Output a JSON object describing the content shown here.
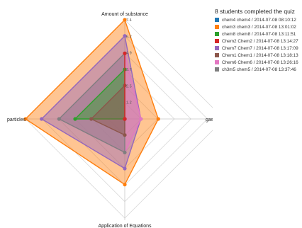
{
  "chart_data": {
    "type": "radar",
    "axes": [
      "Amount of substance",
      "gas volume calculations",
      "Application of Equations",
      "particles"
    ],
    "ticks": [
      "7.4",
      "6.2",
      "4.9",
      "3.7",
      "2.5",
      "1.2"
    ],
    "rmax": 7.4,
    "legend_title": "8 students completed the quiz",
    "legend_position": "top-right",
    "series": [
      {
        "name": "chem4 chem4 / 2014-07-08 08:10:12",
        "color": "#1f77b4",
        "values": [
          0,
          0,
          0,
          0
        ],
        "markers": false
      },
      {
        "name": "chem3 chem3 / 2014-07-08 13:01:02",
        "color": "#ff7f0e",
        "values": [
          7.4,
          2.5,
          4.9,
          7.4
        ],
        "markers": true
      },
      {
        "name": "chem8 chem8 / 2014-07-08 13:11:51",
        "color": "#2ca02c",
        "values": [
          3.7,
          0,
          0,
          3.7
        ],
        "markers": true
      },
      {
        "name": "Chem2 Chem2 / 2014-07-08 13:14:27",
        "color": "#d62728",
        "values": [
          4.9,
          0,
          0,
          0
        ],
        "markers": true
      },
      {
        "name": "Chem7 Chem7 / 2014-07-08 13:17:09",
        "color": "#9467bd",
        "values": [
          6.2,
          1.2,
          3.7,
          6.2
        ],
        "markers": true
      },
      {
        "name": "Chem1 Chem1 / 2014-07-08 13:18:13",
        "color": "#8c564b",
        "values": [
          2.5,
          0,
          1.2,
          2.5
        ],
        "markers": true
      },
      {
        "name": "Chem6 Chem6 / 2014-07-08 13:26:16",
        "color": "#e377c2",
        "values": [
          4.9,
          1.2,
          2.5,
          4.9
        ],
        "markers": true
      },
      {
        "name": "ch3m5 chem5 / 2014-07-08 13:37:46",
        "color": "#7f7f7f",
        "values": [
          4.9,
          0,
          2.5,
          4.9
        ],
        "markers": true
      }
    ],
    "grid": true
  }
}
